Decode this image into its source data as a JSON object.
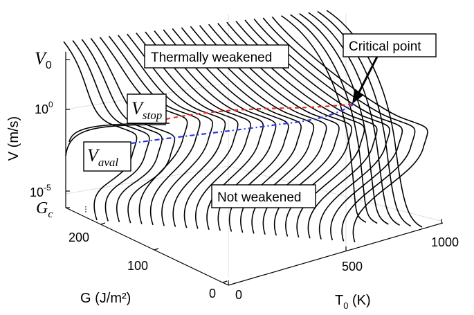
{
  "figure": {
    "y_axis": {
      "label": "V (m/s)",
      "ticks": [
        {
          "sym": "V",
          "sub": "0"
        },
        {
          "base": "10",
          "exp": "0"
        },
        {
          "base": "10",
          "exp": "-5"
        },
        {
          "sym": "G",
          "sub": "c"
        }
      ]
    },
    "g_axis": {
      "label": "G (J/m²)",
      "ticks": [
        "200",
        "100",
        "0"
      ]
    },
    "t_axis": {
      "label_main": "T",
      "label_sub": "0",
      "label_unit": " (K)",
      "ticks": [
        "0",
        "500",
        "1000"
      ]
    },
    "annotations": {
      "thermally_weakened": "Thermally weakened",
      "critical_point": "Critical point",
      "not_weakened": "Not weakened",
      "v_stop": {
        "sym": "V",
        "sub": "stop"
      },
      "v_aval": {
        "sym": "V",
        "sub": "aval"
      }
    },
    "colors": {
      "stop_line": "#e0302a",
      "aval_line": "#2a3ae0",
      "curves": "#000000"
    },
    "curve_count": 30
  }
}
